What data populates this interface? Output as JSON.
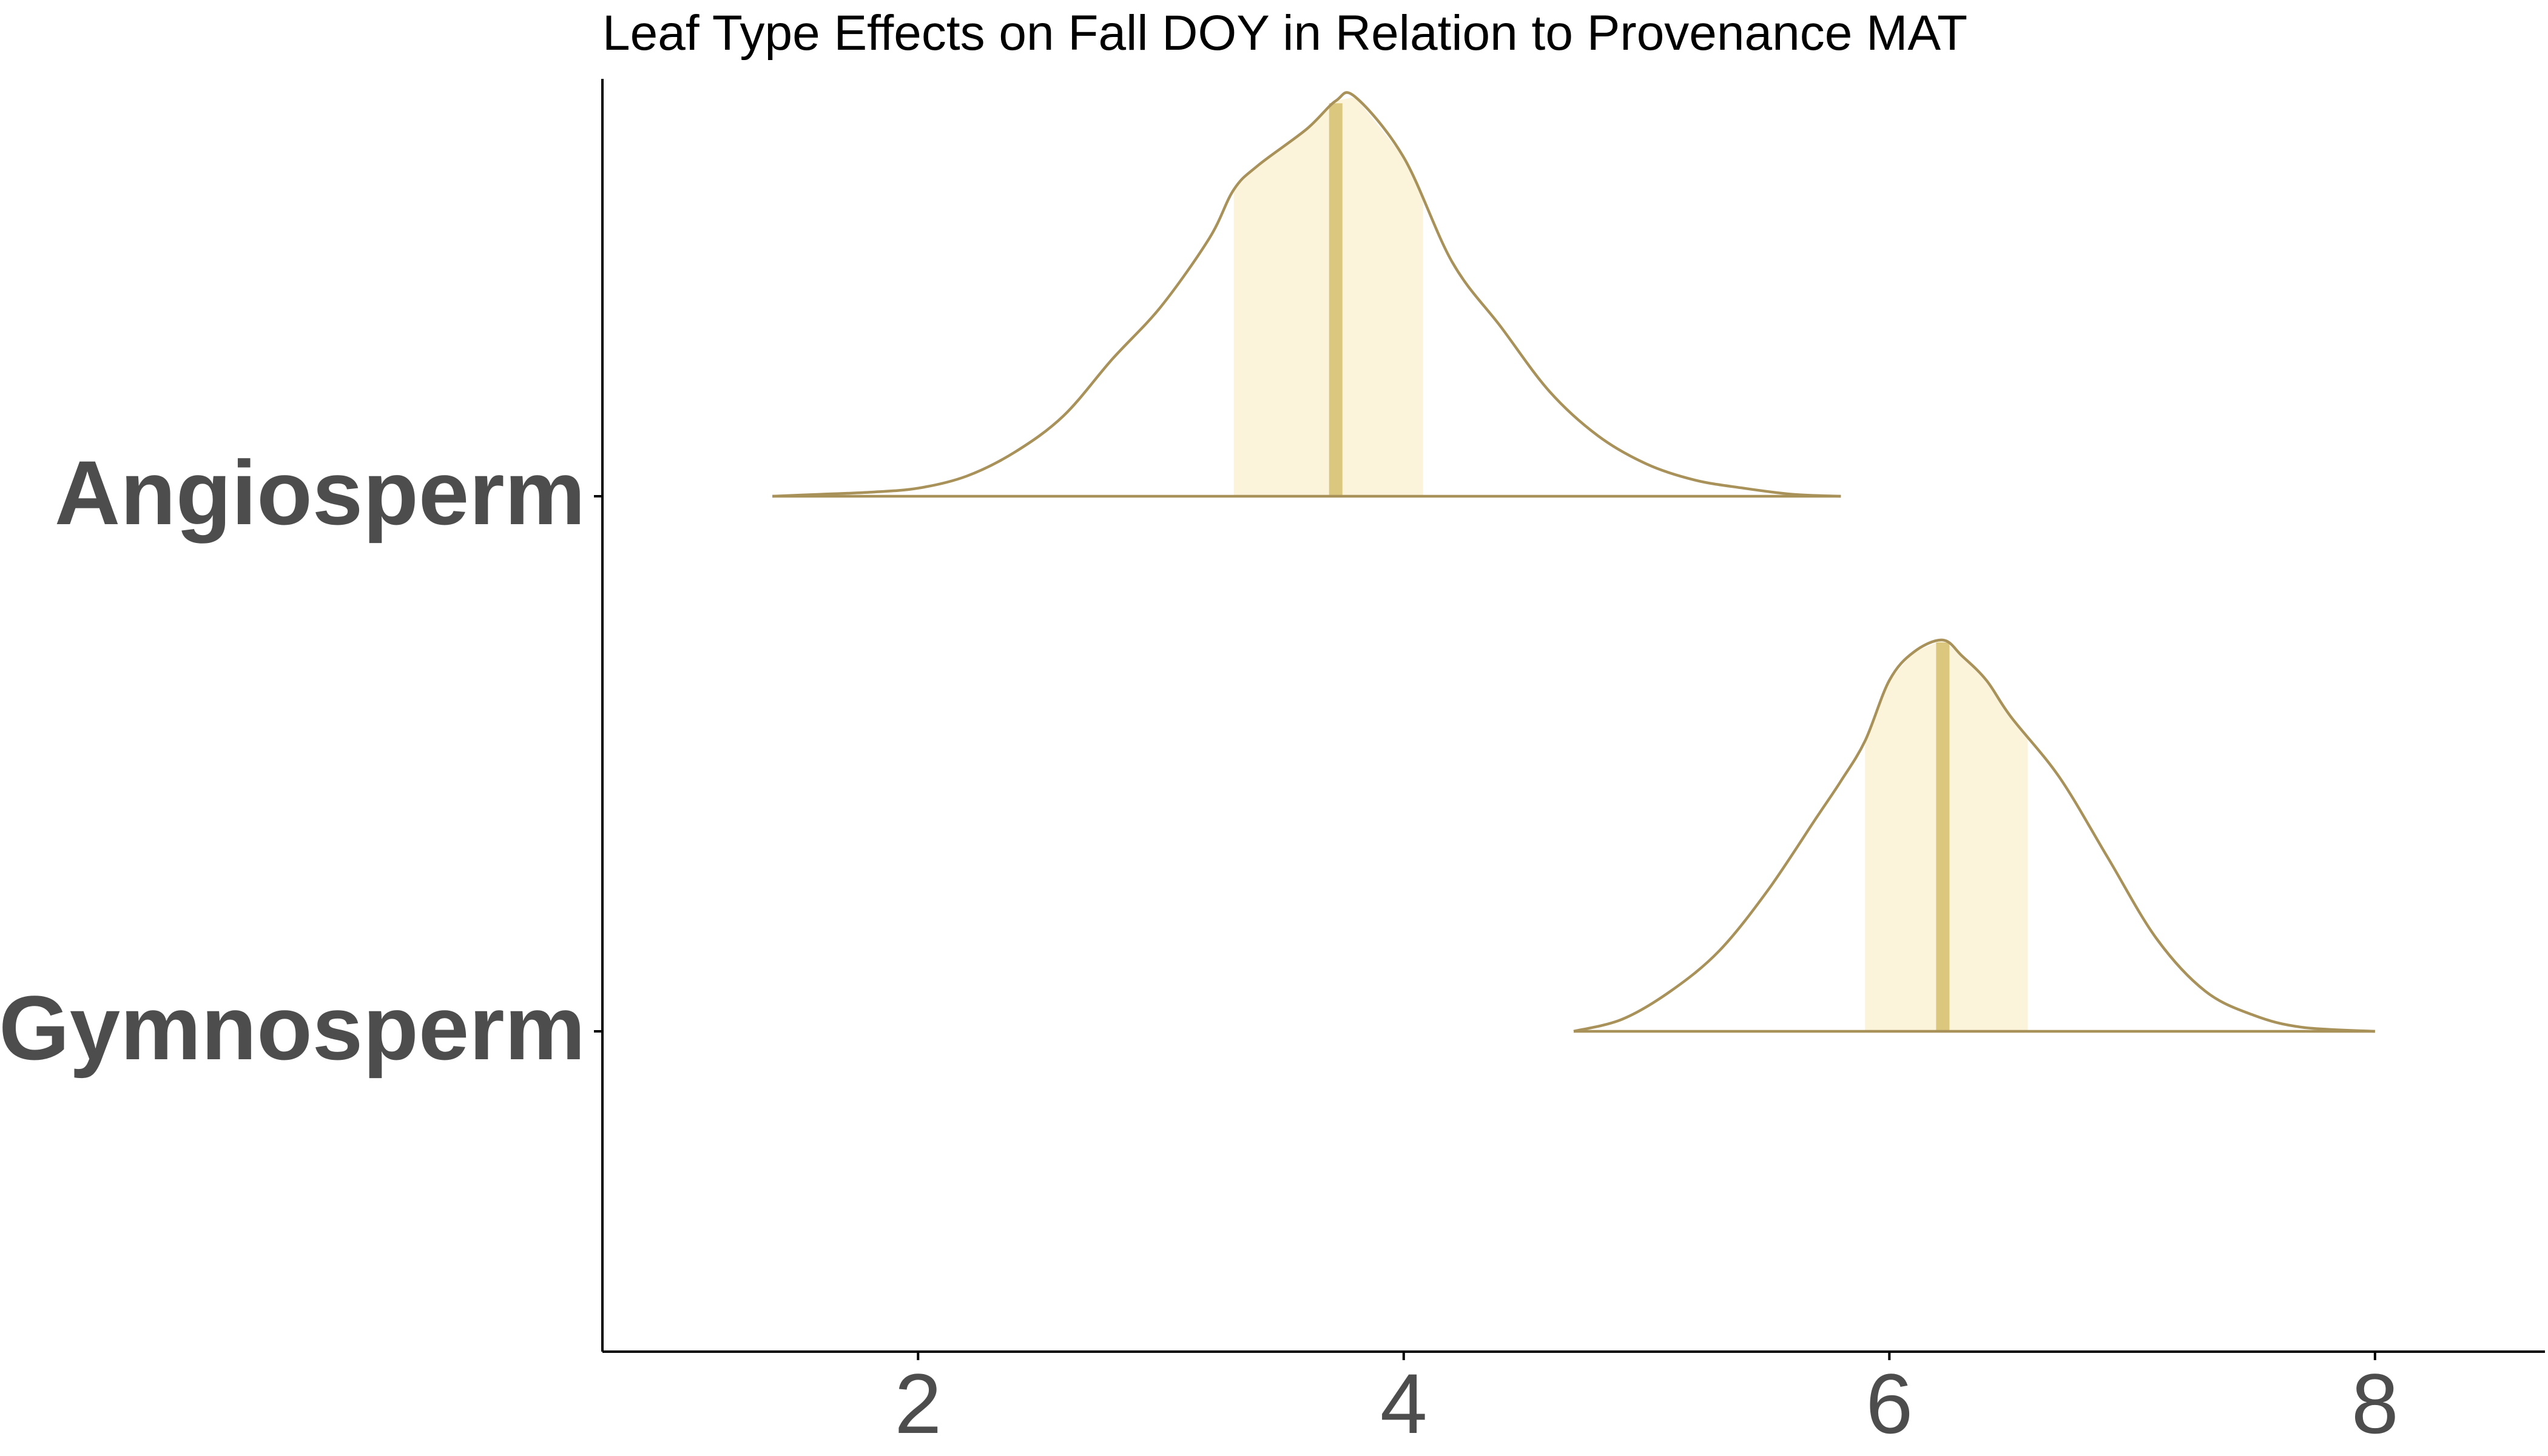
{
  "chart_data": {
    "type": "ridgeline",
    "title": "Leaf Type Effects on Fall DOY in Relation to Provenance MAT",
    "xlabel": "",
    "ylabel": "",
    "xlim": [
      0.7,
      8.7
    ],
    "x_ticks": [
      2,
      4,
      6,
      8
    ],
    "x_tick_labels": [
      "2",
      "4",
      "6",
      "8"
    ],
    "grid": false,
    "legend": "none",
    "colors": {
      "outline": "#A8925A",
      "interval_fill": "#FBF3DA",
      "median_line": "#DCC77E",
      "axis": "#000000",
      "label_text": "#4D4D4D"
    },
    "categories": [
      "Angiosperm",
      "Gymnosperm"
    ],
    "series": [
      {
        "name": "Angiosperm",
        "median": 3.72,
        "interval": [
          3.3,
          4.08
        ],
        "density": {
          "x": [
            1.4,
            1.6,
            1.8,
            2.0,
            2.2,
            2.4,
            2.6,
            2.8,
            3.0,
            3.2,
            3.3,
            3.4,
            3.6,
            3.72,
            3.8,
            4.0,
            4.2,
            4.4,
            4.6,
            4.8,
            5.0,
            5.2,
            5.4,
            5.6,
            5.8
          ],
          "y": [
            0.0,
            0.005,
            0.01,
            0.02,
            0.05,
            0.11,
            0.2,
            0.34,
            0.47,
            0.64,
            0.76,
            0.82,
            0.91,
            0.98,
            0.99,
            0.84,
            0.58,
            0.42,
            0.26,
            0.15,
            0.08,
            0.04,
            0.02,
            0.005,
            0.0
          ]
        }
      },
      {
        "name": "Gymnosperm",
        "median": 6.22,
        "interval": [
          5.9,
          6.57
        ],
        "density": {
          "x": [
            4.7,
            4.9,
            5.1,
            5.3,
            5.5,
            5.7,
            5.8,
            5.9,
            6.0,
            6.1,
            6.22,
            6.3,
            6.4,
            6.5,
            6.7,
            6.9,
            7.1,
            7.3,
            7.5,
            7.7,
            8.0
          ],
          "y": [
            0.0,
            0.03,
            0.1,
            0.2,
            0.35,
            0.53,
            0.62,
            0.72,
            0.87,
            0.94,
            0.97,
            0.93,
            0.87,
            0.78,
            0.63,
            0.43,
            0.23,
            0.1,
            0.04,
            0.01,
            0.0
          ]
        }
      }
    ]
  }
}
